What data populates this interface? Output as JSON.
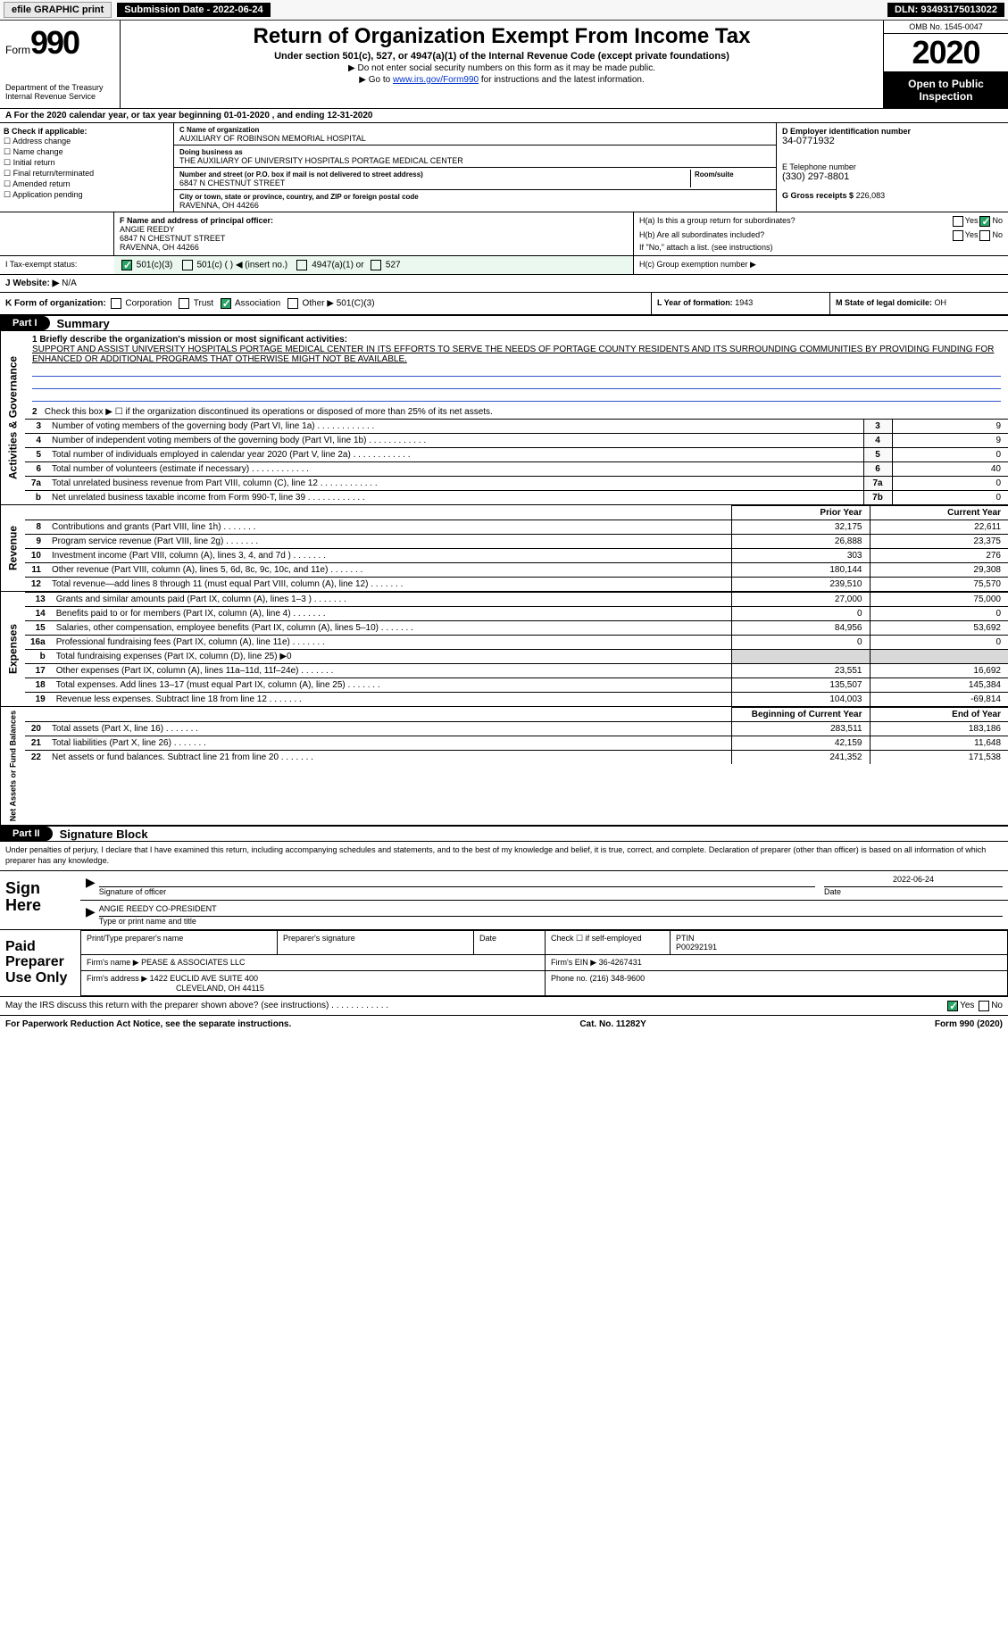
{
  "meta": {
    "dln": "DLN: 93493175013022",
    "submission_date_label": "Submission Date - 2022-06-24",
    "efile_label": "efile GRAPHIC print",
    "omb": "OMB No. 1545-0047",
    "tax_year": "2020",
    "open_inspection": "Open to Public Inspection",
    "form_label": "Form",
    "form_number": "990",
    "dept": "Department of the Treasury\nInternal Revenue Service",
    "title": "Return of Organization Exempt From Income Tax",
    "subtitle1": "Under section 501(c), 527, or 4947(a)(1) of the Internal Revenue Code (except private foundations)",
    "subtitle2": "▶ Do not enter social security numbers on this form as it may be made public.",
    "subtitle3_pre": "▶ Go to ",
    "subtitle3_link": "www.irs.gov/Form990",
    "subtitle3_post": " for instructions and the latest information.",
    "year_line": "A For the 2020 calendar year, or tax year beginning 01-01-2020    , and ending 12-31-2020"
  },
  "checkB": {
    "header": "B Check if applicable:",
    "items": [
      "Address change",
      "Name change",
      "Initial return",
      "Final return/terminated",
      "Amended return",
      "Application pending"
    ]
  },
  "nameBlock": {
    "labelC": "C Name of organization",
    "name": "AUXILIARY OF ROBINSON MEMORIAL HOSPITAL",
    "dba_label": "Doing business as",
    "dba": "THE AUXILIARY OF UNIVERSITY HOSPITALS PORTAGE MEDICAL CENTER",
    "street_label": "Number and street (or P.O. box if mail is not delivered to street address)",
    "street": "6847 N CHESTNUT STREET",
    "room_label": "Room/suite",
    "city_label": "City or town, state or province, country, and ZIP or foreign postal code",
    "city": "RAVENNA, OH  44266"
  },
  "right": {
    "einLabel": "D Employer identification number",
    "ein": "34-0771932",
    "phoneLabel": "E Telephone number",
    "phone": "(330) 297-8801",
    "grossLabel": "G Gross receipts $",
    "gross": "226,083"
  },
  "officer": {
    "label": "F  Name and address of principal officer:",
    "name": "ANGIE REEDY",
    "street": "6847 N CHESTNUT STREET",
    "city": "RAVENNA, OH  44266"
  },
  "h": {
    "ha": "H(a)  Is this a group return for subordinates?",
    "hb": "H(b)  Are all subordinates included?",
    "hnote": "If \"No,\" attach a list. (see instructions)",
    "hc": "H(c)  Group exemption number ▶",
    "yes": "Yes",
    "no": "No"
  },
  "tax": {
    "statusLabel": "I    Tax-exempt status:",
    "c3": "501(c)(3)",
    "cblank": "501(c) (   ) ◀ (insert no.)",
    "a1": "4947(a)(1) or",
    "s527": "527",
    "websiteLabel": "J   Website: ▶",
    "website": "N/A",
    "kLabel": "K Form of organization:",
    "k_corp": "Corporation",
    "k_trust": "Trust",
    "k_assoc": "Association",
    "k_other": "Other ▶",
    "k_othertxt": "501(C)(3)",
    "lLabel": "L Year of formation:",
    "lVal": "1943",
    "mLabel": "M State of legal domicile:",
    "mVal": "OH"
  },
  "parts": {
    "p1": "Part I",
    "p1t": "Summary",
    "p2": "Part II",
    "p2t": "Signature Block"
  },
  "summary": {
    "q1": "1   Briefly describe the organization's mission or most significant activities:",
    "mission": "SUPPORT AND ASSIST UNIVERSITY HOSPITALS PORTAGE MEDICAL CENTER IN ITS EFFORTS TO SERVE THE NEEDS OF PORTAGE COUNTY RESIDENTS AND ITS SURROUNDING COMMUNITIES BY PROVIDING FUNDING FOR ENHANCED OR ADDITIONAL PROGRAMS THAT OTHERWISE MIGHT NOT BE AVAILABLE.",
    "q2": "Check this box ▶ ☐ if the organization discontinued its operations or disposed of more than 25% of its net assets.",
    "lines": [
      {
        "n": "3",
        "d": "Number of voting members of the governing body (Part VI, line 1a)",
        "box": "3",
        "v": "9"
      },
      {
        "n": "4",
        "d": "Number of independent voting members of the governing body (Part VI, line 1b)",
        "box": "4",
        "v": "9"
      },
      {
        "n": "5",
        "d": "Total number of individuals employed in calendar year 2020 (Part V, line 2a)",
        "box": "5",
        "v": "0"
      },
      {
        "n": "6",
        "d": "Total number of volunteers (estimate if necessary)",
        "box": "6",
        "v": "40"
      },
      {
        "n": "7a",
        "d": "Total unrelated business revenue from Part VIII, column (C), line 12",
        "box": "7a",
        "v": "0"
      },
      {
        "n": "b",
        "d": "Net unrelated business taxable income from Form 990-T, line 39",
        "box": "7b",
        "v": "0"
      }
    ],
    "priorHdr": "Prior Year",
    "currHdr": "Current Year",
    "revenue": [
      {
        "n": "8",
        "d": "Contributions and grants (Part VIII, line 1h)",
        "p": "32,175",
        "c": "22,611"
      },
      {
        "n": "9",
        "d": "Program service revenue (Part VIII, line 2g)",
        "p": "26,888",
        "c": "23,375"
      },
      {
        "n": "10",
        "d": "Investment income (Part VIII, column (A), lines 3, 4, and 7d )",
        "p": "303",
        "c": "276"
      },
      {
        "n": "11",
        "d": "Other revenue (Part VIII, column (A), lines 5, 6d, 8c, 9c, 10c, and 11e)",
        "p": "180,144",
        "c": "29,308"
      },
      {
        "n": "12",
        "d": "Total revenue—add lines 8 through 11 (must equal Part VIII, column (A), line 12)",
        "p": "239,510",
        "c": "75,570"
      }
    ],
    "expenses": [
      {
        "n": "13",
        "d": "Grants and similar amounts paid (Part IX, column (A), lines 1–3 )",
        "p": "27,000",
        "c": "75,000"
      },
      {
        "n": "14",
        "d": "Benefits paid to or for members (Part IX, column (A), line 4)",
        "p": "0",
        "c": "0"
      },
      {
        "n": "15",
        "d": "Salaries, other compensation, employee benefits (Part IX, column (A), lines 5–10)",
        "p": "84,956",
        "c": "53,692"
      },
      {
        "n": "16a",
        "d": "Professional fundraising fees (Part IX, column (A), line 11e)",
        "p": "0",
        "c": "0"
      },
      {
        "n": "b",
        "d": "Total fundraising expenses (Part IX, column (D), line 25) ▶0",
        "p": "",
        "c": "",
        "shaded": true
      },
      {
        "n": "17",
        "d": "Other expenses (Part IX, column (A), lines 11a–11d, 11f–24e)",
        "p": "23,551",
        "c": "16,692"
      },
      {
        "n": "18",
        "d": "Total expenses. Add lines 13–17 (must equal Part IX, column (A), line 25)",
        "p": "135,507",
        "c": "145,384"
      },
      {
        "n": "19",
        "d": "Revenue less expenses. Subtract line 18 from line 12",
        "p": "104,003",
        "c": "-69,814"
      }
    ],
    "beginHdr": "Beginning of Current Year",
    "endHdr": "End of Year",
    "net": [
      {
        "n": "20",
        "d": "Total assets (Part X, line 16)",
        "p": "283,511",
        "c": "183,186"
      },
      {
        "n": "21",
        "d": "Total liabilities (Part X, line 26)",
        "p": "42,159",
        "c": "11,648"
      },
      {
        "n": "22",
        "d": "Net assets or fund balances. Subtract line 21 from line 20",
        "p": "241,352",
        "c": "171,538"
      }
    ],
    "vlabels": {
      "gov": "Activities & Governance",
      "rev": "Revenue",
      "exp": "Expenses",
      "net": "Net Assets or Fund Balances"
    }
  },
  "sig": {
    "decl": "Under penalties of perjury, I declare that I have examined this return, including accompanying schedules and statements, and to the best of my knowledge and belief, it is true, correct, and complete. Declaration of preparer (other than officer) is based on all information of which preparer has any knowledge.",
    "signHere": "Sign Here",
    "sigOfficer": "Signature of officer",
    "date": "Date",
    "sigDate": "2022-06-24",
    "nameTitle": "ANGIE REEDY CO-PRESIDENT",
    "typeName": "Type or print name and title",
    "paid": "Paid Preparer Use Only",
    "printName": "Print/Type preparer's name",
    "prepSig": "Preparer's signature",
    "checkSelf": "Check ☐ if self-employed",
    "ptinLabel": "PTIN",
    "ptin": "P00292191",
    "firmNameLabel": "Firm's name      ▶",
    "firmName": "PEASE & ASSOCIATES LLC",
    "firmEinLabel": "Firm's EIN ▶",
    "firmEin": "36-4267431",
    "firmAddrLabel": "Firm's address ▶",
    "firmAddr1": "1422 EUCLID AVE SUITE 400",
    "firmAddr2": "CLEVELAND, OH  44115",
    "phoneLabel": "Phone no.",
    "phone": "(216) 348-9600",
    "discuss": "May the IRS discuss this return with the preparer shown above? (see instructions)"
  },
  "foot": {
    "pra": "For Paperwork Reduction Act Notice, see the separate instructions.",
    "cat": "Cat. No. 11282Y",
    "form": "Form 990 (2020)"
  }
}
